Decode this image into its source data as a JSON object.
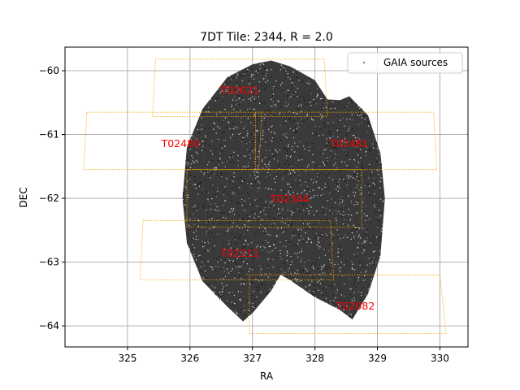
{
  "chart_data": {
    "type": "scatter",
    "title": "7DT Tile: 2344, R = 2.0",
    "xlabel": "RA",
    "ylabel": "DEC",
    "xlim": [
      324.0,
      330.45
    ],
    "ylim": [
      -64.33,
      -59.63
    ],
    "x_ticks": [
      325,
      326,
      327,
      328,
      329,
      330
    ],
    "y_ticks": [
      -60,
      -61,
      -62,
      -63,
      -64
    ],
    "grid": true,
    "legend": {
      "placement": "top-right",
      "entries": [
        "GAIA sources"
      ]
    },
    "colors": {
      "points": "#333333",
      "tiles": "#ffa500",
      "tile_labels": "#ff0000",
      "grid": "#b0b0b0"
    },
    "series": [
      {
        "name": "GAIA sources",
        "kind": "point-cloud",
        "boundary_ra_dec": [
          [
            327.3,
            -59.84
          ],
          [
            327.6,
            -59.93
          ],
          [
            328.0,
            -60.15
          ],
          [
            328.2,
            -60.45
          ],
          [
            328.4,
            -60.46
          ],
          [
            328.55,
            -60.4
          ],
          [
            328.85,
            -60.7
          ],
          [
            329.05,
            -61.3
          ],
          [
            329.12,
            -62.0
          ],
          [
            329.05,
            -62.9
          ],
          [
            328.85,
            -63.5
          ],
          [
            328.6,
            -63.9
          ],
          [
            328.4,
            -63.75
          ],
          [
            328.0,
            -63.55
          ],
          [
            327.6,
            -63.28
          ],
          [
            327.45,
            -63.2
          ],
          [
            327.3,
            -63.45
          ],
          [
            327.0,
            -63.8
          ],
          [
            326.85,
            -63.93
          ],
          [
            326.6,
            -63.7
          ],
          [
            326.2,
            -63.3
          ],
          [
            325.95,
            -62.7
          ],
          [
            325.88,
            -62.0
          ],
          [
            325.95,
            -61.2
          ],
          [
            326.2,
            -60.6
          ],
          [
            326.6,
            -60.1
          ],
          [
            327.0,
            -59.9
          ]
        ]
      }
    ],
    "tiles": [
      {
        "label": "T02621",
        "corners": [
          [
            325.45,
            -59.82
          ],
          [
            328.15,
            -59.82
          ],
          [
            328.2,
            -60.72
          ],
          [
            325.4,
            -60.72
          ]
        ],
        "label_pos": [
          326.8,
          -60.3
        ]
      },
      {
        "label": "T02480",
        "corners": [
          [
            324.35,
            -60.65
          ],
          [
            327.15,
            -60.65
          ],
          [
            327.1,
            -61.55
          ],
          [
            324.3,
            -61.55
          ]
        ],
        "label_pos": [
          325.85,
          -61.13
        ]
      },
      {
        "label": "T02481",
        "corners": [
          [
            327.05,
            -60.65
          ],
          [
            329.9,
            -60.65
          ],
          [
            329.95,
            -61.55
          ],
          [
            327.05,
            -61.55
          ]
        ],
        "label_pos": [
          328.55,
          -61.13
        ]
      },
      {
        "label": "T02344",
        "corners": [
          [
            325.95,
            -61.55
          ],
          [
            328.75,
            -61.55
          ],
          [
            328.75,
            -62.45
          ],
          [
            325.95,
            -62.45
          ]
        ],
        "label_pos": [
          327.6,
          -62.0
        ]
      },
      {
        "label": "T02211",
        "corners": [
          [
            325.25,
            -62.35
          ],
          [
            328.25,
            -62.35
          ],
          [
            328.3,
            -63.28
          ],
          [
            325.2,
            -63.28
          ]
        ],
        "label_pos": [
          326.8,
          -62.85
        ]
      },
      {
        "label": "T02082",
        "corners": [
          [
            326.95,
            -63.2
          ],
          [
            330.0,
            -63.2
          ],
          [
            330.1,
            -64.12
          ],
          [
            326.95,
            -64.12
          ]
        ],
        "label_pos": [
          328.65,
          -63.68
        ]
      }
    ]
  }
}
